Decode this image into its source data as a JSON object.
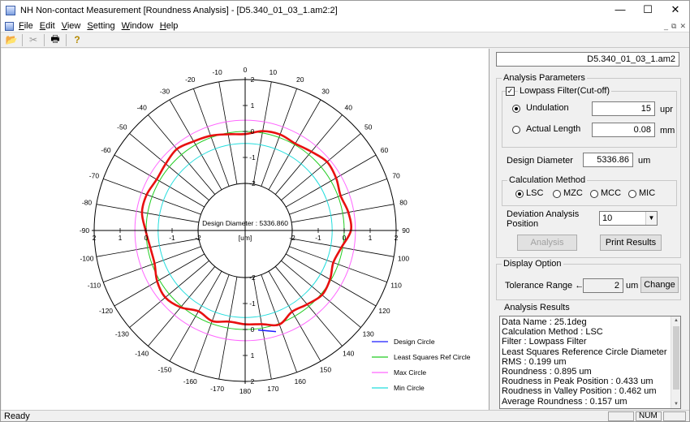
{
  "window": {
    "title": "NH Non-contact Measurement [Roundness Analysis] - [D5.340_01_03_1.am2:2]",
    "min_glyph": "—",
    "max_glyph": "☐",
    "close_glyph": "✕"
  },
  "menu": {
    "items": [
      {
        "accel": "F",
        "rest": "ile"
      },
      {
        "accel": "E",
        "rest": "dit"
      },
      {
        "accel": "V",
        "rest": "iew"
      },
      {
        "accel": "S",
        "rest": "etting"
      },
      {
        "accel": "W",
        "rest": "indow"
      },
      {
        "accel": "H",
        "rest": "elp"
      }
    ],
    "mdi_min": "_",
    "mdi_restore": "⧉",
    "mdi_close": "✕"
  },
  "toolbar": {
    "open_glyph": "📂",
    "cut_glyph": "✂",
    "print_glyph": "🖶",
    "help_glyph": "?"
  },
  "file_name": "D5.340_01_03_1.am2",
  "analysis_params": {
    "title": "Analysis Parameters",
    "lowpass_label": "Lowpass Filter(Cut-off)",
    "lowpass_checked": true,
    "check_mark": "✓",
    "undulation_label": "Undulation",
    "undulation_value": "15",
    "undulation_unit": "upr",
    "actual_length_label": "Actual Length",
    "actual_length_value": "0.08",
    "actual_length_unit": "mm",
    "design_diameter_label": "Design Diameter",
    "design_diameter_value": "5336.86",
    "design_diameter_unit": "um",
    "calc_method_title": "Calculation Method",
    "methods": [
      "LSC",
      "MZC",
      "MCC",
      "MIC"
    ],
    "selected_method": "LSC",
    "deviation_label_1": "Deviation Analysis",
    "deviation_label_2": "Position",
    "deviation_value": "10",
    "dropdown_glyph": "▼",
    "analysis_button": "Analysis",
    "print_button": "Print Results"
  },
  "display_option": {
    "title": "Display Option",
    "tolerance_label": "Tolerance Range ←",
    "tolerance_value": "2",
    "tolerance_unit": "um",
    "change_button": "Change"
  },
  "analysis_results": {
    "title": "Analysis Results",
    "lines": [
      "Data Name : 25.1deg",
      "Calculation Method : LSC",
      "Filter : Lowpass Filter",
      "Least Squares Reference Circle Diameter : 5336.860",
      "RMS : 0.199 um",
      "Roundness : 0.895 um",
      "Roudness in Peak Position : 0.433 um",
      "Roudness in Valley Position : 0.462 um",
      "Average Roundness : 0.157 um"
    ],
    "scroll_up": "▲",
    "scroll_down": "▼"
  },
  "status": {
    "ready": "Ready",
    "num": "NUM"
  },
  "chart_data": {
    "type": "polar",
    "center_label": "Design Diameter : 5336.860",
    "unit_label": "[um]",
    "angle_labels": [
      "0",
      "10",
      "20",
      "30",
      "40",
      "50",
      "60",
      "70",
      "80",
      "90",
      "100",
      "110",
      "120",
      "130",
      "140",
      "150",
      "160",
      "170",
      "180",
      "-170",
      "-160",
      "-150",
      "-140",
      "-130",
      "-120",
      "-110",
      "-100",
      "-90",
      "-80",
      "-70",
      "-60",
      "-50",
      "-40",
      "-30",
      "-20",
      "-10"
    ],
    "radial_ticks": [
      "2",
      "1",
      "0",
      "-1",
      "-2"
    ],
    "radial_range": [
      -2,
      2
    ],
    "grid": true,
    "legend": [
      "Design Circle",
      "Least Squares Ref Circle",
      "Max Circle",
      "Min Circle"
    ],
    "legend_position": "bottom-right",
    "colors": {
      "design": "#1a1aff",
      "least_squares": "#22cc22",
      "max": "#ff66ff",
      "min": "#22dddd",
      "profile": "#e81010",
      "grid": "#000000"
    },
    "circles_um": {
      "least_squares": 0.0,
      "max": 0.433,
      "min": -0.462
    },
    "profile_um": {
      "angle_deg": [
        0,
        10,
        20,
        30,
        40,
        50,
        60,
        70,
        80,
        90,
        100,
        110,
        120,
        130,
        140,
        150,
        160,
        170,
        180,
        190,
        200,
        210,
        220,
        230,
        240,
        250,
        260,
        270,
        280,
        290,
        300,
        310,
        320,
        330,
        340,
        350
      ],
      "deviation": [
        -0.1,
        0.07,
        0.12,
        0.05,
        0.15,
        0.3,
        0.23,
        0.1,
        0.22,
        0.26,
        -0.05,
        -0.2,
        -0.04,
        0.05,
        -0.1,
        -0.2,
        0.04,
        -0.15,
        -0.2,
        -0.25,
        -0.1,
        -0.22,
        0.05,
        0.2,
        0.1,
        -0.1,
        -0.1,
        0.02,
        0.22,
        0.22,
        0.12,
        0.18,
        0.28,
        0.15,
        0.07,
        -0.05
      ]
    }
  }
}
